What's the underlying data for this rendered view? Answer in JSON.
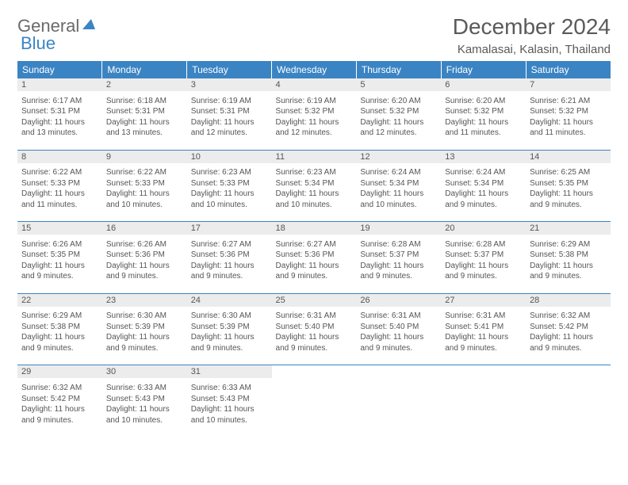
{
  "brand": {
    "part1": "General",
    "part2": "Blue"
  },
  "title": "December 2024",
  "location": "Kamalasai, Kalasin, Thailand",
  "colors": {
    "header_bg": "#3b84c4",
    "header_text": "#ffffff",
    "daynum_bg": "#ececec",
    "text": "#555555",
    "rule": "#3b84c4",
    "background": "#ffffff"
  },
  "typography": {
    "title_fontsize": 28,
    "location_fontsize": 15,
    "dayhead_fontsize": 12,
    "daynum_fontsize": 11,
    "body_fontsize": 10
  },
  "daynames": [
    "Sunday",
    "Monday",
    "Tuesday",
    "Wednesday",
    "Thursday",
    "Friday",
    "Saturday"
  ],
  "weeks": [
    [
      {
        "n": "1",
        "sr": "6:17 AM",
        "ss": "5:31 PM",
        "dl": "11 hours and 13 minutes."
      },
      {
        "n": "2",
        "sr": "6:18 AM",
        "ss": "5:31 PM",
        "dl": "11 hours and 13 minutes."
      },
      {
        "n": "3",
        "sr": "6:19 AM",
        "ss": "5:31 PM",
        "dl": "11 hours and 12 minutes."
      },
      {
        "n": "4",
        "sr": "6:19 AM",
        "ss": "5:32 PM",
        "dl": "11 hours and 12 minutes."
      },
      {
        "n": "5",
        "sr": "6:20 AM",
        "ss": "5:32 PM",
        "dl": "11 hours and 12 minutes."
      },
      {
        "n": "6",
        "sr": "6:20 AM",
        "ss": "5:32 PM",
        "dl": "11 hours and 11 minutes."
      },
      {
        "n": "7",
        "sr": "6:21 AM",
        "ss": "5:32 PM",
        "dl": "11 hours and 11 minutes."
      }
    ],
    [
      {
        "n": "8",
        "sr": "6:22 AM",
        "ss": "5:33 PM",
        "dl": "11 hours and 11 minutes."
      },
      {
        "n": "9",
        "sr": "6:22 AM",
        "ss": "5:33 PM",
        "dl": "11 hours and 10 minutes."
      },
      {
        "n": "10",
        "sr": "6:23 AM",
        "ss": "5:33 PM",
        "dl": "11 hours and 10 minutes."
      },
      {
        "n": "11",
        "sr": "6:23 AM",
        "ss": "5:34 PM",
        "dl": "11 hours and 10 minutes."
      },
      {
        "n": "12",
        "sr": "6:24 AM",
        "ss": "5:34 PM",
        "dl": "11 hours and 10 minutes."
      },
      {
        "n": "13",
        "sr": "6:24 AM",
        "ss": "5:34 PM",
        "dl": "11 hours and 9 minutes."
      },
      {
        "n": "14",
        "sr": "6:25 AM",
        "ss": "5:35 PM",
        "dl": "11 hours and 9 minutes."
      }
    ],
    [
      {
        "n": "15",
        "sr": "6:26 AM",
        "ss": "5:35 PM",
        "dl": "11 hours and 9 minutes."
      },
      {
        "n": "16",
        "sr": "6:26 AM",
        "ss": "5:36 PM",
        "dl": "11 hours and 9 minutes."
      },
      {
        "n": "17",
        "sr": "6:27 AM",
        "ss": "5:36 PM",
        "dl": "11 hours and 9 minutes."
      },
      {
        "n": "18",
        "sr": "6:27 AM",
        "ss": "5:36 PM",
        "dl": "11 hours and 9 minutes."
      },
      {
        "n": "19",
        "sr": "6:28 AM",
        "ss": "5:37 PM",
        "dl": "11 hours and 9 minutes."
      },
      {
        "n": "20",
        "sr": "6:28 AM",
        "ss": "5:37 PM",
        "dl": "11 hours and 9 minutes."
      },
      {
        "n": "21",
        "sr": "6:29 AM",
        "ss": "5:38 PM",
        "dl": "11 hours and 9 minutes."
      }
    ],
    [
      {
        "n": "22",
        "sr": "6:29 AM",
        "ss": "5:38 PM",
        "dl": "11 hours and 9 minutes."
      },
      {
        "n": "23",
        "sr": "6:30 AM",
        "ss": "5:39 PM",
        "dl": "11 hours and 9 minutes."
      },
      {
        "n": "24",
        "sr": "6:30 AM",
        "ss": "5:39 PM",
        "dl": "11 hours and 9 minutes."
      },
      {
        "n": "25",
        "sr": "6:31 AM",
        "ss": "5:40 PM",
        "dl": "11 hours and 9 minutes."
      },
      {
        "n": "26",
        "sr": "6:31 AM",
        "ss": "5:40 PM",
        "dl": "11 hours and 9 minutes."
      },
      {
        "n": "27",
        "sr": "6:31 AM",
        "ss": "5:41 PM",
        "dl": "11 hours and 9 minutes."
      },
      {
        "n": "28",
        "sr": "6:32 AM",
        "ss": "5:42 PM",
        "dl": "11 hours and 9 minutes."
      }
    ],
    [
      {
        "n": "29",
        "sr": "6:32 AM",
        "ss": "5:42 PM",
        "dl": "11 hours and 9 minutes."
      },
      {
        "n": "30",
        "sr": "6:33 AM",
        "ss": "5:43 PM",
        "dl": "11 hours and 10 minutes."
      },
      {
        "n": "31",
        "sr": "6:33 AM",
        "ss": "5:43 PM",
        "dl": "11 hours and 10 minutes."
      },
      null,
      null,
      null,
      null
    ]
  ],
  "labels": {
    "sunrise": "Sunrise:",
    "sunset": "Sunset:",
    "daylight": "Daylight:"
  }
}
